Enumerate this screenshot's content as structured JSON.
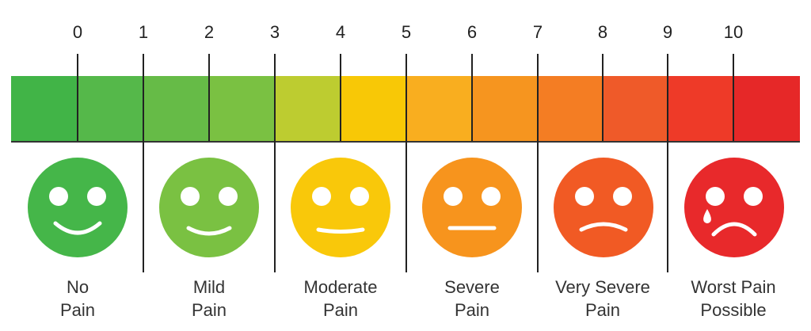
{
  "scale": {
    "numbers": [
      "0",
      "1",
      "2",
      "3",
      "4",
      "5",
      "6",
      "7",
      "8",
      "9",
      "10"
    ],
    "bar_colors": [
      "#41b447",
      "#55b84a",
      "#66bb47",
      "#7ac142",
      "#bdcc30",
      "#f8c806",
      "#f9ae1f",
      "#f6951f",
      "#f47d23",
      "#ef5a29",
      "#ee3a28",
      "#e62828"
    ]
  },
  "faces": [
    {
      "label_line1": "No",
      "label_line2": "Pain",
      "color": "#45b649",
      "mouth": "big-smile",
      "icon": "happy-face-icon"
    },
    {
      "label_line1": "Mild",
      "label_line2": "Pain",
      "color": "#7ac142",
      "mouth": "smile",
      "icon": "slight-smile-face-icon"
    },
    {
      "label_line1": "Moderate",
      "label_line2": "Pain",
      "color": "#f9c80a",
      "mouth": "slight",
      "icon": "neutral-smile-face-icon"
    },
    {
      "label_line1": "Severe",
      "label_line2": "Pain",
      "color": "#f7941d",
      "mouth": "flat",
      "icon": "neutral-face-icon"
    },
    {
      "label_line1": "Very Severe",
      "label_line2": "Pain",
      "color": "#f15a24",
      "mouth": "frown",
      "icon": "sad-face-icon"
    },
    {
      "label_line1": "Worst Pain",
      "label_line2": "Possible",
      "color": "#e8292b",
      "mouth": "big-frown",
      "tear": true,
      "icon": "crying-face-icon"
    }
  ]
}
